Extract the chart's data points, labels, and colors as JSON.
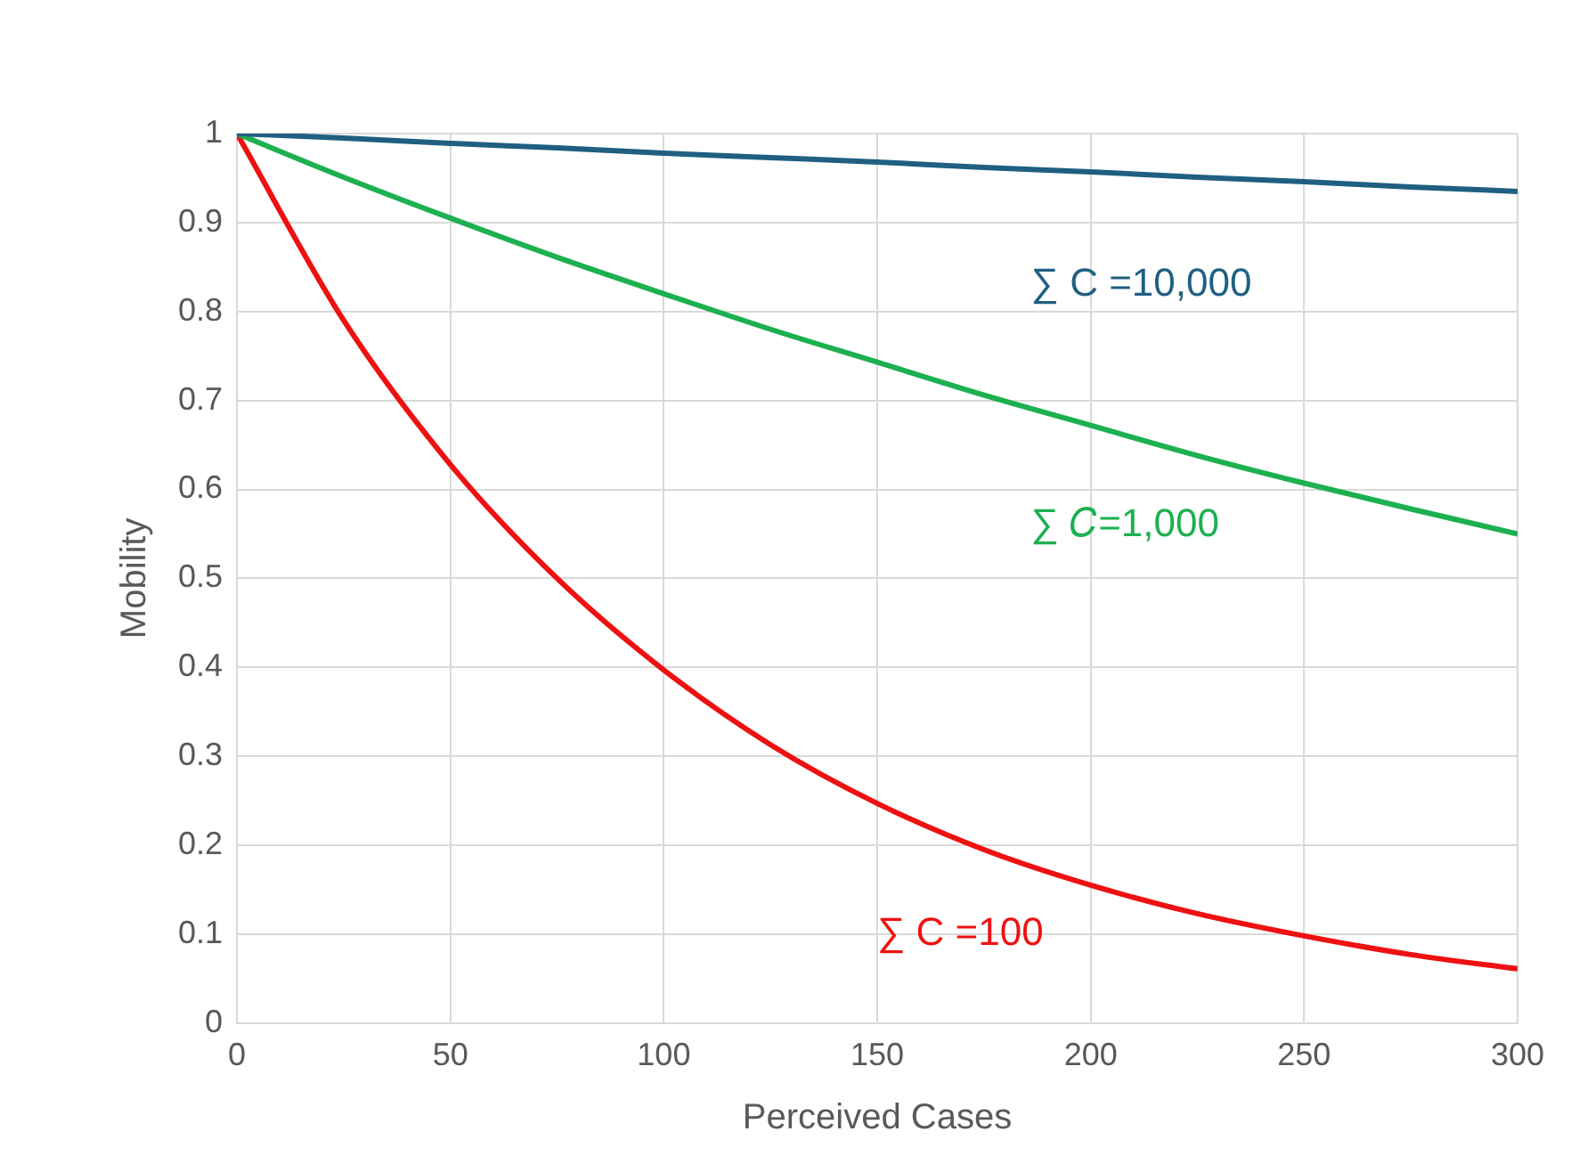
{
  "chart_data": {
    "type": "line",
    "xlabel": "Perceived Cases",
    "ylabel": "Mobility",
    "x": [
      0,
      25,
      50,
      75,
      100,
      125,
      150,
      175,
      200,
      225,
      250,
      275,
      300
    ],
    "series": [
      {
        "name": "∑ C =10,000",
        "color": "#1f5f82",
        "values": [
          1,
          0.995,
          0.989,
          0.984,
          0.978,
          0.973,
          0.968,
          0.962,
          0.957,
          0.951,
          0.946,
          0.94,
          0.935
        ]
      },
      {
        "name": "∑ 𝐶=1,000",
        "color": "#1db050",
        "values": [
          1,
          0.951,
          0.905,
          0.861,
          0.82,
          0.78,
          0.743,
          0.706,
          0.672,
          0.638,
          0.607,
          0.578,
          0.55
        ]
      },
      {
        "name": "∑ C =100",
        "color": "#ee1111",
        "values": [
          1,
          0.79,
          0.628,
          0.5,
          0.397,
          0.313,
          0.247,
          0.195,
          0.155,
          0.123,
          0.098,
          0.077,
          0.061
        ]
      }
    ],
    "xlim": [
      0,
      300
    ],
    "xticks": [
      0,
      50,
      100,
      150,
      200,
      250,
      300
    ],
    "ylim": [
      0,
      1
    ],
    "yticks": [
      0,
      0.1,
      0.2,
      0.3,
      0.4,
      0.5,
      0.6,
      0.7,
      0.8,
      0.9,
      1
    ],
    "grid": true,
    "legend": false,
    "marker": "none",
    "line_style": "solid"
  }
}
